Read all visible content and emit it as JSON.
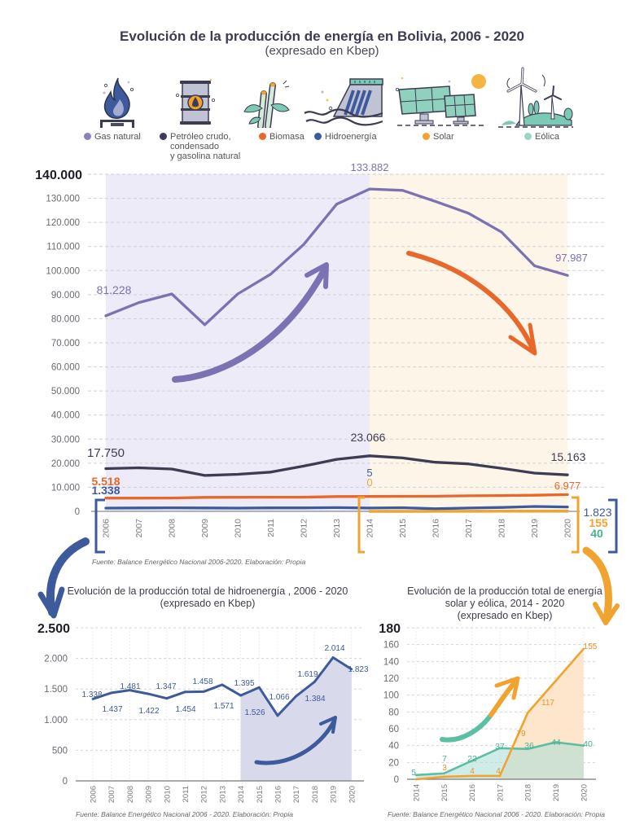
{
  "header": {
    "title": "Evolución de la producción de energía en Bolivia, 2006 - 2020",
    "subtitle": "(expresado en Kbep)"
  },
  "legend": {
    "items": [
      {
        "key": "gas",
        "icon": "gas-flame-icon",
        "label": [
          "Gas natural"
        ],
        "color": "#8a82c0"
      },
      {
        "key": "petroleo",
        "icon": "oil-barrel-icon",
        "label": [
          "Petróleo crudo,",
          "condensado",
          "y gasolina natural"
        ],
        "color": "#3c3c52"
      },
      {
        "key": "biomasa",
        "icon": "sugarcane-icon",
        "label": [
          "Biomasa"
        ],
        "color": "#e8672a"
      },
      {
        "key": "hidro",
        "icon": "hydro-dam-icon",
        "label": [
          "Hidroenergía"
        ],
        "color": "#3d5b9c"
      },
      {
        "key": "solar",
        "icon": "solar-panel-icon",
        "label": [
          "Solar"
        ],
        "color": "#f0a32e"
      },
      {
        "key": "eolica",
        "icon": "wind-turbine-icon",
        "label": [
          "Eólica"
        ],
        "color": "#98d6c8"
      }
    ]
  },
  "chart_data": [
    {
      "type": "line",
      "title": "Evolución de la producción de energía en Bolivia, 2006 - 2020",
      "subtitle": "(expresado en Kbep)",
      "xlabel": "",
      "ylabel": "",
      "x": [
        "2006",
        "2007",
        "2008",
        "2009",
        "2010",
        "2011",
        "2012",
        "2013",
        "2014",
        "2015",
        "2016",
        "2017",
        "2018",
        "2019",
        "2020"
      ],
      "ylim": [
        0,
        140000
      ],
      "yticks": [
        0,
        10000,
        20000,
        30000,
        40000,
        50000,
        60000,
        70000,
        80000,
        90000,
        100000,
        110000,
        120000,
        130000,
        140000
      ],
      "ytick_labels": [
        "0",
        "10.000",
        "20.000",
        "30.000",
        "40.000",
        "50.000",
        "60.000",
        "70.000",
        "80.000",
        "90.000",
        "100.000",
        "110.000",
        "120.000",
        "130.000",
        "140.000"
      ],
      "grid": true,
      "legend": "top",
      "bands": [
        {
          "from": "2006",
          "to": "2014",
          "color": "#ecebf7"
        },
        {
          "from": "2014",
          "to": "2020",
          "color": "#fef5e9"
        }
      ],
      "series": [
        {
          "name": "Gas natural",
          "key": "gas",
          "color": "#7b72b3",
          "x_start": "2006",
          "values": [
            81228,
            86700,
            90300,
            77500,
            90300,
            98500,
            110800,
            127600,
            133882,
            133300,
            128700,
            123800,
            116000,
            102000,
            97987
          ]
        },
        {
          "name": "Petróleo crudo, condensado y gasolina natural",
          "key": "petroleo",
          "color": "#3c3c52",
          "x_start": "2006",
          "values": [
            17750,
            18100,
            17600,
            14900,
            15400,
            16300,
            18800,
            21600,
            23066,
            22200,
            20400,
            19700,
            17900,
            15900,
            15163
          ]
        },
        {
          "name": "Biomasa",
          "key": "biomasa",
          "color": "#e8672a",
          "x_start": "2006",
          "values": [
            5518,
            5500,
            5530,
            5800,
            5850,
            5870,
            5900,
            6150,
            6200,
            6250,
            6300,
            6450,
            6550,
            6700,
            6977
          ]
        },
        {
          "name": "Hidroenergía",
          "key": "hidro",
          "color": "#3d5b9c",
          "x_start": "2006",
          "values": [
            1338,
            1437,
            1481,
            1422,
            1347,
            1454,
            1458,
            1571,
            1395,
            1526,
            1066,
            1384,
            1619,
            2014,
            1823
          ]
        },
        {
          "name": "Eólica",
          "key": "eolica",
          "color": "#5bbfa3",
          "x_start": "2014",
          "values": [
            5,
            7,
            22,
            37,
            36,
            44,
            40
          ]
        },
        {
          "name": "Solar",
          "key": "solar",
          "color": "#f0a32e",
          "x_start": "2014",
          "values": [
            0,
            3,
            4,
            4,
            79,
            117,
            155
          ]
        }
      ],
      "labels": [
        {
          "text": "81.228",
          "series": "gas",
          "x": "2006",
          "color": "#7b72b3"
        },
        {
          "text": "133.882",
          "series": "gas",
          "x": "2014",
          "color": "#7b72b3"
        },
        {
          "text": "97.987",
          "series": "gas",
          "x": "2020",
          "color": "#7b72b3"
        },
        {
          "text": "17.750",
          "series": "petroleo",
          "x": "2006",
          "color": "#3c3c52"
        },
        {
          "text": "23.066",
          "series": "petroleo",
          "x": "2014",
          "color": "#3c3c52"
        },
        {
          "text": "15.163",
          "series": "petroleo",
          "x": "2020",
          "color": "#3c3c52"
        },
        {
          "text": "5.518",
          "series": "biomasa",
          "x": "2006",
          "color": "#e8672a"
        },
        {
          "text": "1.338",
          "series": "hidro",
          "x": "2006",
          "color": "#3d5b9c"
        },
        {
          "text": "6.977",
          "series": "biomasa",
          "x": "2020",
          "color": "#e8672a"
        },
        {
          "text": "5",
          "series": "eolica",
          "x": "2014",
          "color": "#3d5b9c"
        },
        {
          "text": "0",
          "series": "solar",
          "x": "2014",
          "color": "#f0a32e"
        },
        {
          "text": "1.823",
          "series": "hidro",
          "x": "2020",
          "color": "#3d5b9c"
        },
        {
          "text": "155",
          "series": "solar",
          "x": "2020",
          "color": "#f0a32e"
        },
        {
          "text": "40",
          "series": "eolica",
          "x": "2020",
          "color": "#4aae96"
        }
      ],
      "source": "Fuente: Balance Energético Nacional 2006-2020. Elaboración: Propia"
    },
    {
      "type": "area",
      "title": "Evolución de la producción total de hidroenergía , 2006 - 2020",
      "subtitle": "(expresado en Kbep)",
      "xlabel": "",
      "ylabel": "",
      "x": [
        "2006",
        "2007",
        "2008",
        "2009",
        "2010",
        "2011",
        "2012",
        "2013",
        "2014",
        "2015",
        "2016",
        "2017",
        "2018",
        "2019",
        "2020"
      ],
      "ylim": [
        0,
        2500
      ],
      "yticks": [
        0,
        500,
        1000,
        1500,
        2000,
        2500
      ],
      "ytick_labels": [
        "0",
        "500",
        "1.000",
        "1.500",
        "2.000",
        "2.500"
      ],
      "grid": true,
      "highlight": {
        "from": "2014",
        "to": "2020",
        "color": "#d9d9ec"
      },
      "series": [
        {
          "name": "Hidroenergía",
          "color": "#3d5b9c",
          "values": [
            1338,
            1437,
            1481,
            1422,
            1347,
            1454,
            1458,
            1571,
            1395,
            1526,
            1066,
            1384,
            1619,
            2014,
            1823
          ],
          "data_labels": [
            "1.338",
            "1.437",
            "1.481",
            "1.422",
            "1.347",
            "1.454",
            "1.458",
            "1.571",
            "1.395",
            "1.526",
            "1.066",
            "1.384",
            "1.619",
            "2.014",
            "1.823"
          ]
        }
      ],
      "source": "Fuente: Balance Energético Nacional 2006 - 2020. Elaboración: Propia"
    },
    {
      "type": "area",
      "title_lines": [
        "Evolución de la producción total de energía",
        "solar y eólica, 2014 - 2020"
      ],
      "subtitle": "(expresado en Kbep)",
      "xlabel": "",
      "ylabel": "",
      "x": [
        "2014",
        "2015",
        "2016",
        "2017",
        "2018",
        "2019",
        "2020"
      ],
      "ylim": [
        0,
        180
      ],
      "yticks": [
        0,
        20,
        40,
        60,
        80,
        100,
        120,
        140,
        160,
        180
      ],
      "ytick_labels": [
        "0",
        "20",
        "40",
        "60",
        "80",
        "100",
        "120",
        "140",
        "160",
        "180"
      ],
      "grid": true,
      "series": [
        {
          "name": "Solar",
          "key": "solar",
          "color": "#f0a32e",
          "fill": "#fde6cc",
          "values": [
            0,
            3,
            4,
            4,
            79,
            117,
            155
          ],
          "data_labels": [
            "",
            "3",
            "4",
            "4",
            "79",
            "117",
            "155"
          ]
        },
        {
          "name": "Eólica",
          "key": "eolica",
          "color": "#5bbfa3",
          "fill": "#a9dcd6",
          "values": [
            5,
            7,
            22,
            37,
            36,
            44,
            40
          ],
          "data_labels": [
            "5",
            "7",
            "22",
            "37",
            "36",
            "44",
            "40"
          ]
        }
      ],
      "source": "Fuente: Balance Energético Nacional 2006 - 2020. Elaboración: Propia"
    }
  ]
}
